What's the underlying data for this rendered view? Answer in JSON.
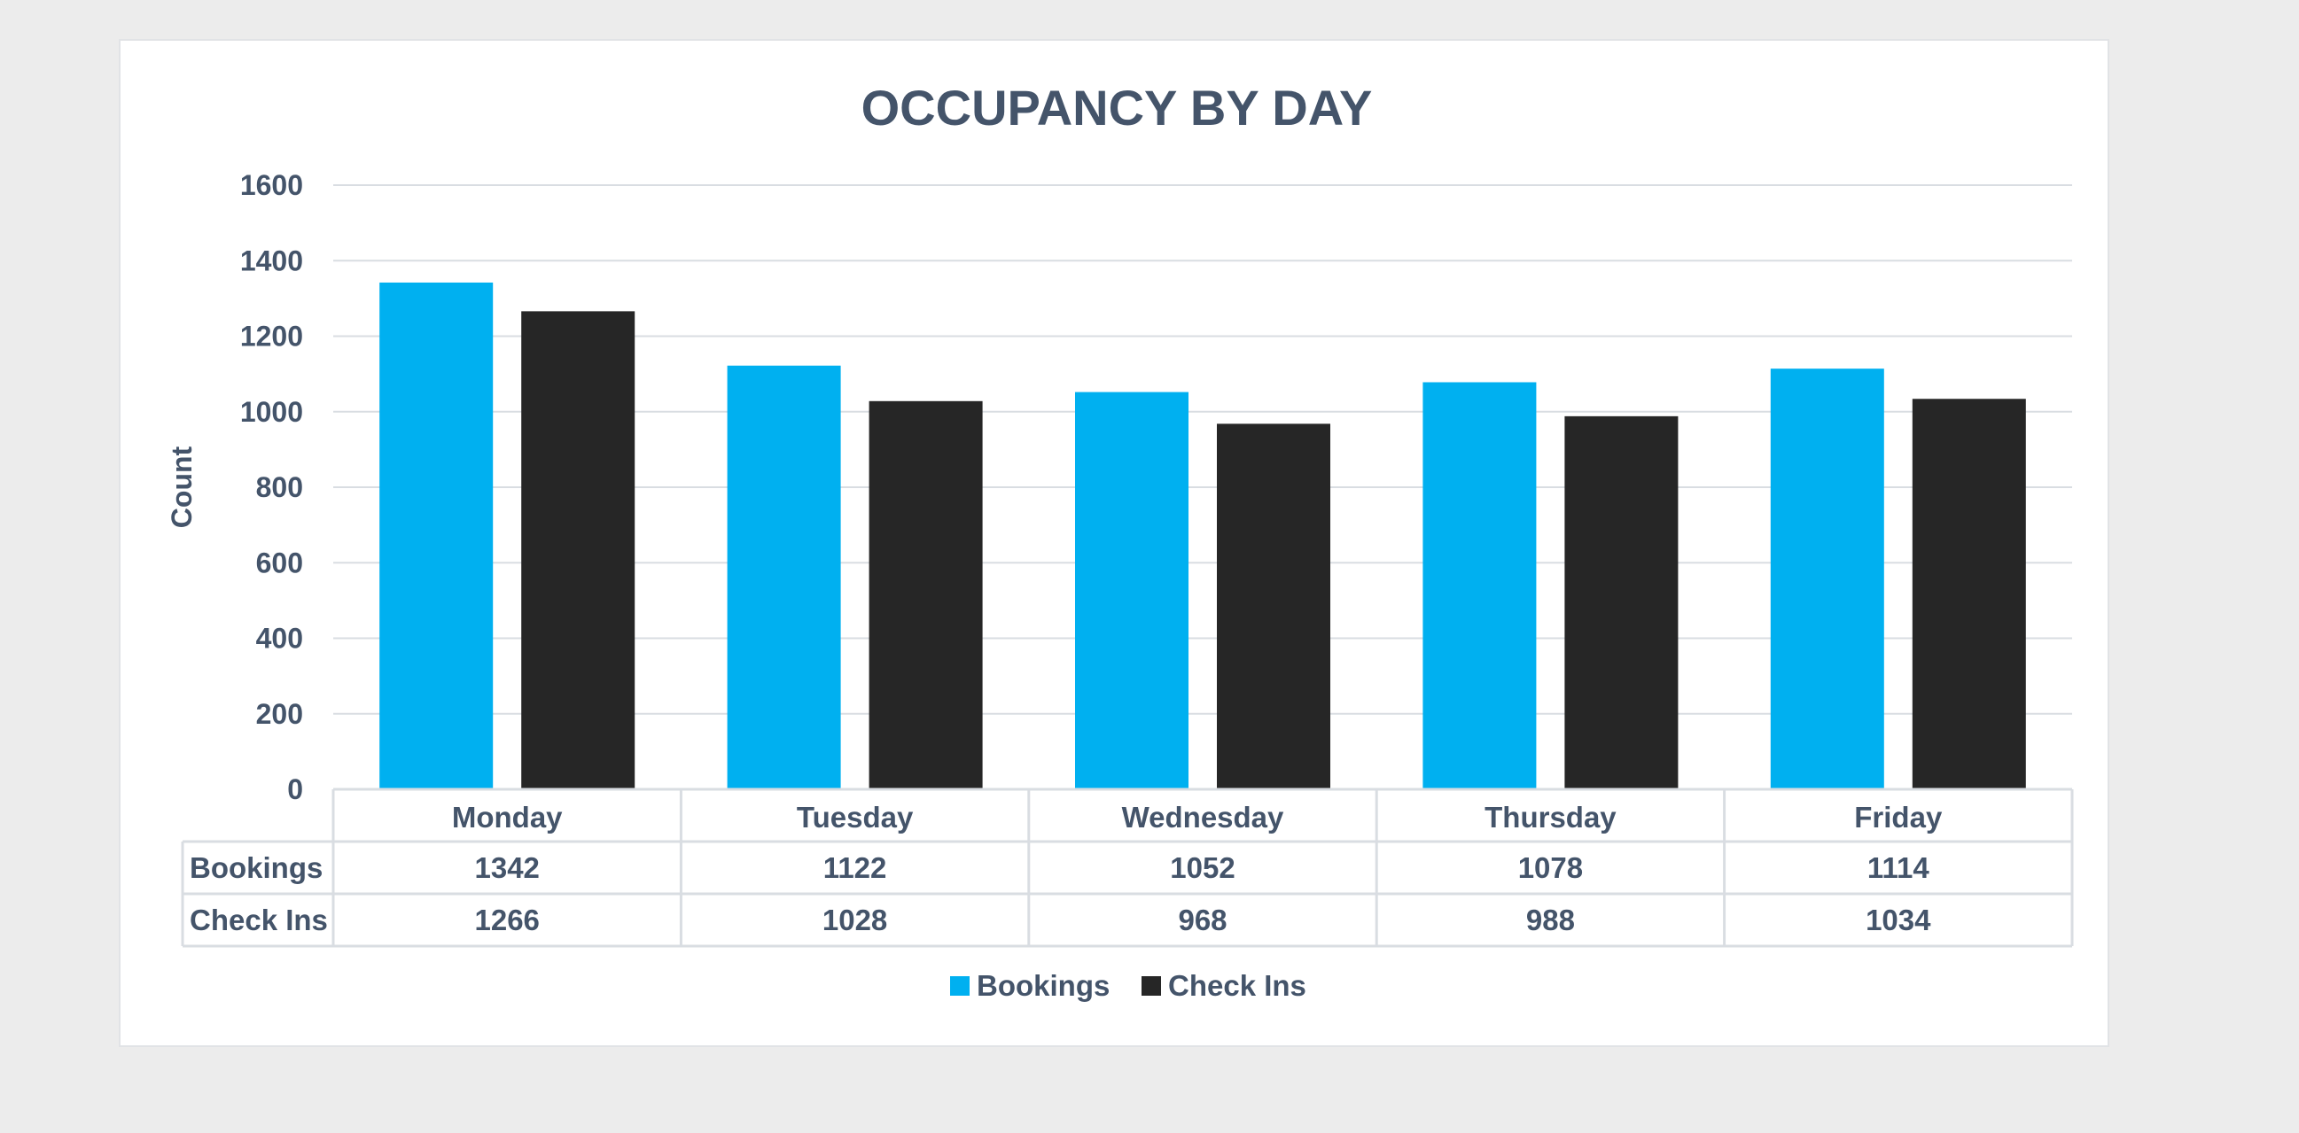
{
  "chart_data": {
    "type": "bar",
    "title": "OCCUPANCY BY DAY",
    "xlabel": "",
    "ylabel": "Count",
    "ylim": [
      0,
      1600
    ],
    "yticks": [
      0,
      200,
      400,
      600,
      800,
      1000,
      1200,
      1400,
      1600
    ],
    "categories": [
      "Monday",
      "Tuesday",
      "Wednesday",
      "Thursday",
      "Friday"
    ],
    "series": [
      {
        "name": "Bookings",
        "color": "#00b0f0",
        "values": [
          1342,
          1122,
          1052,
          1078,
          1114
        ]
      },
      {
        "name": "Check Ins",
        "color": "#262626",
        "values": [
          1266,
          1028,
          968,
          988,
          1034
        ]
      }
    ],
    "grid": true,
    "legend": "bottom",
    "data_table": true
  }
}
